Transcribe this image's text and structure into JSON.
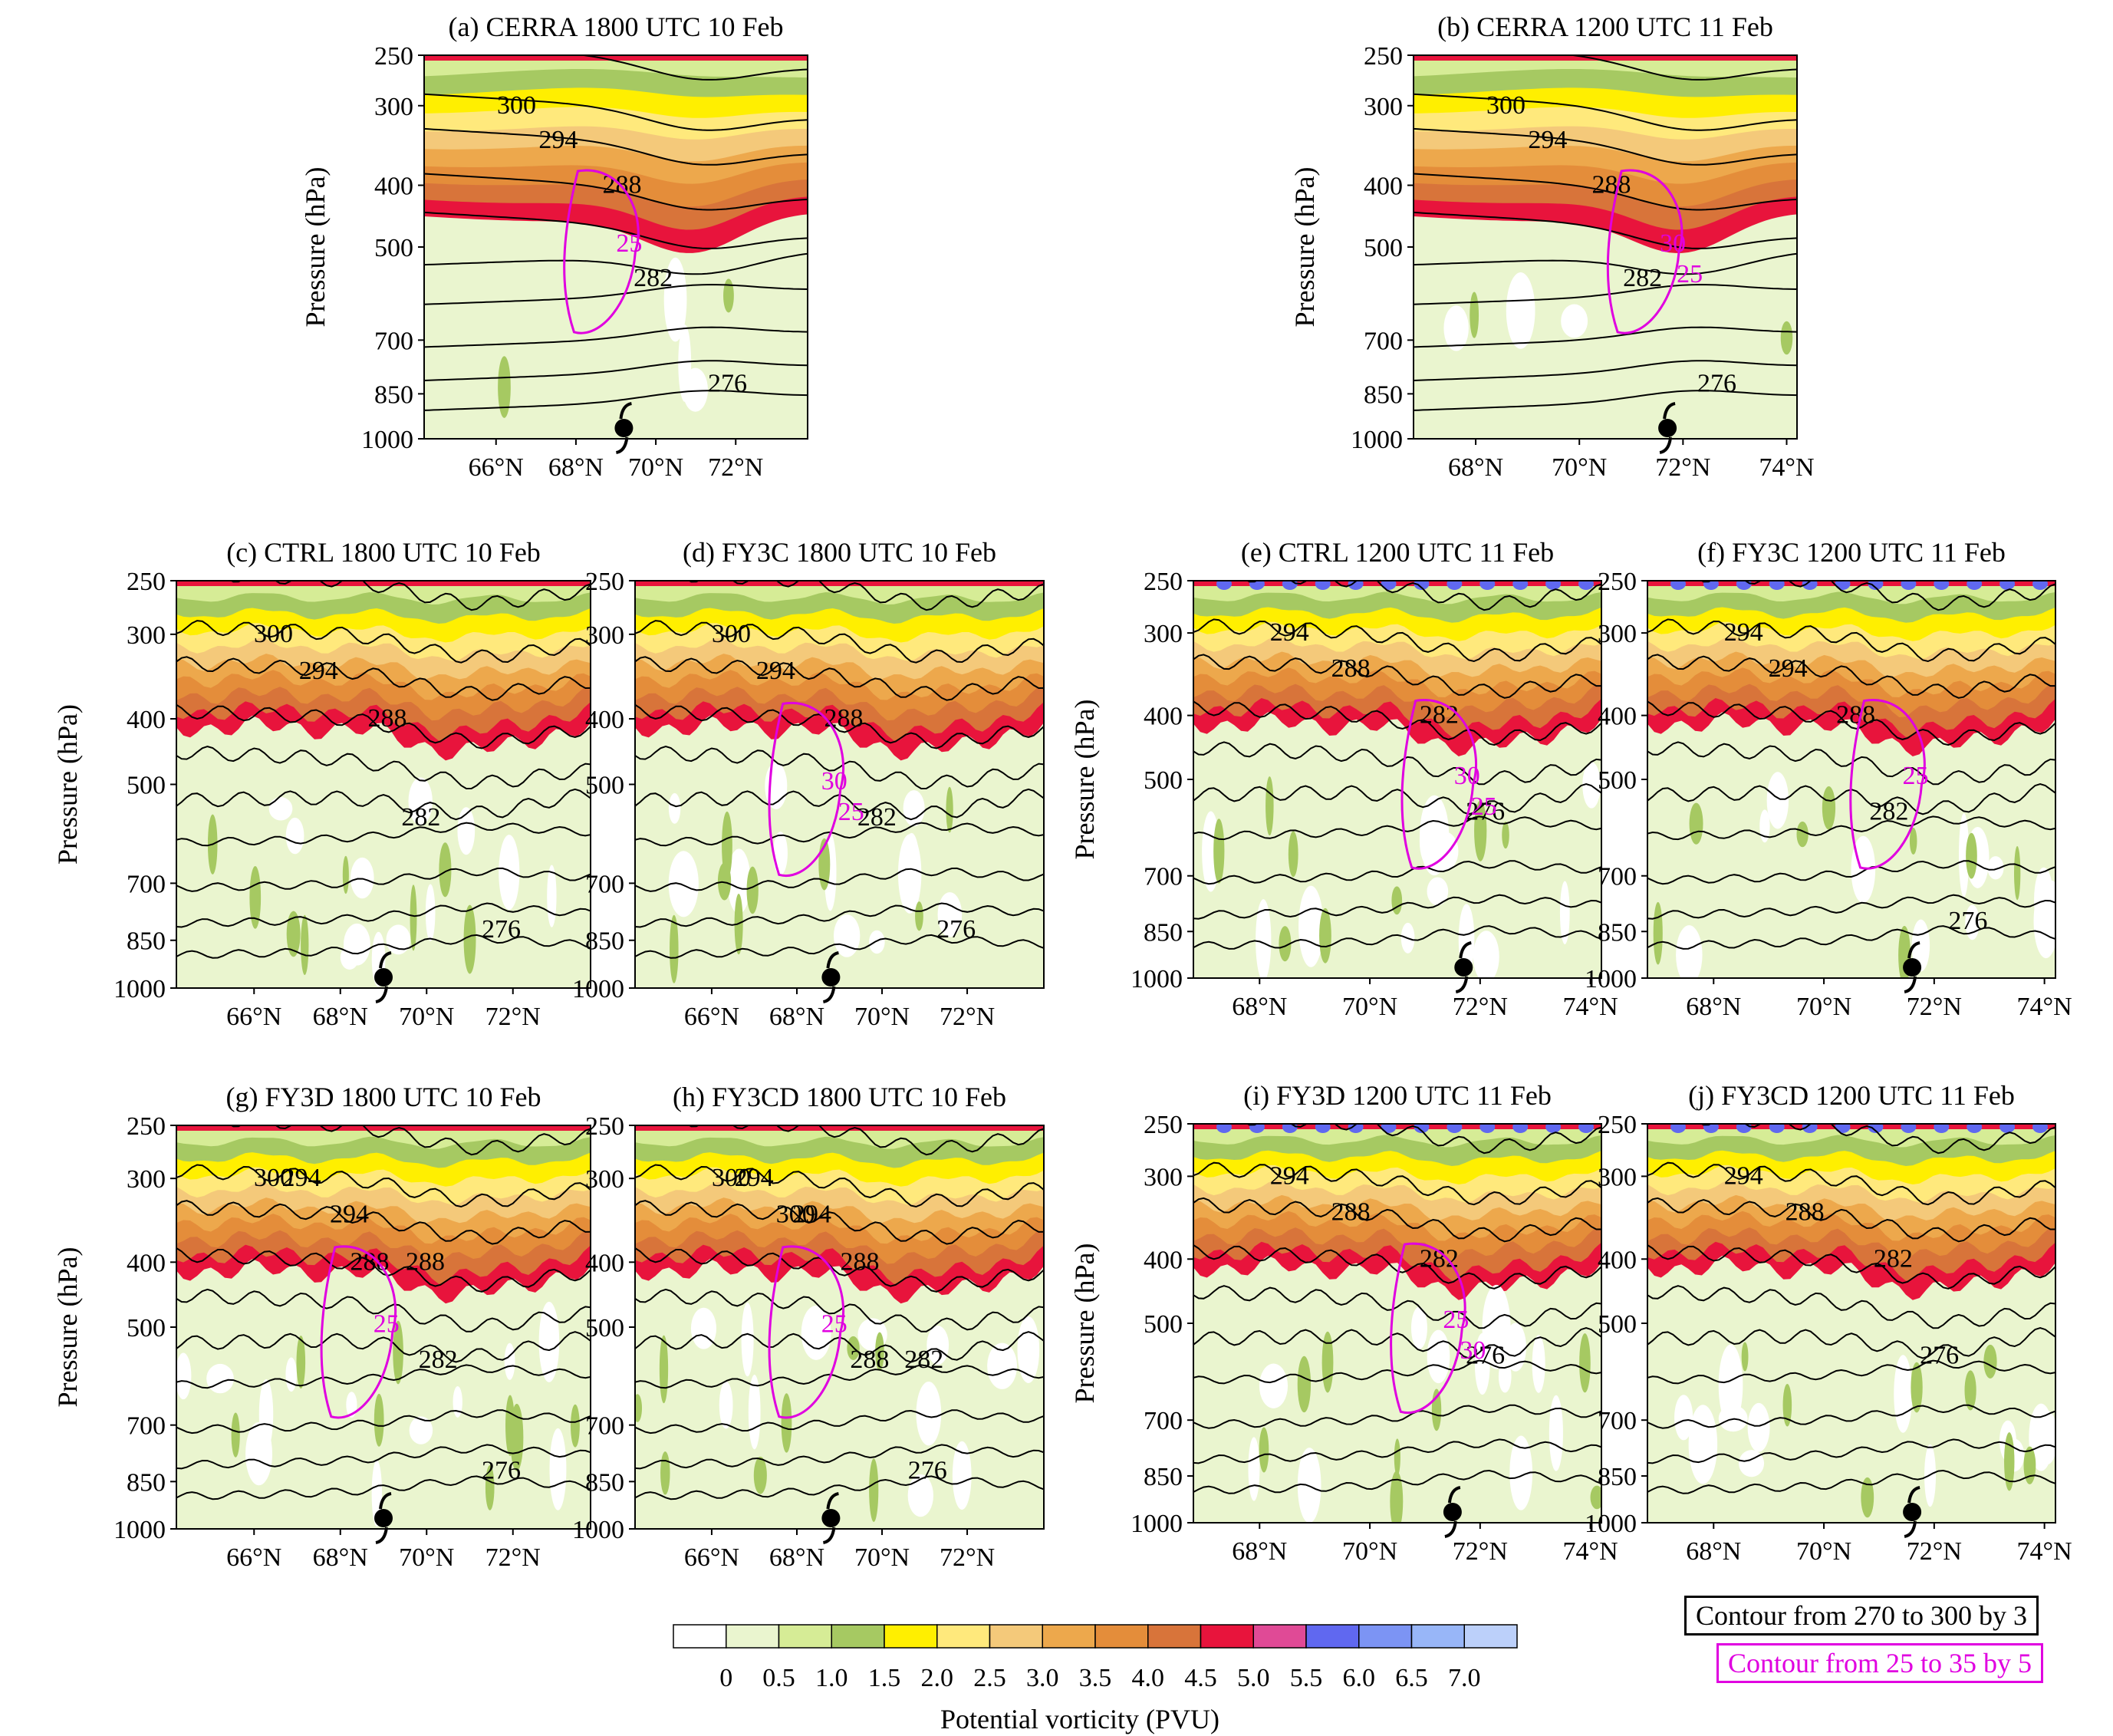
{
  "figure": {
    "y_axis_label": "Pressure (hPa)",
    "contour_legend_black": "Contour from 270 to 300 by 3",
    "contour_legend_magenta": "Contour from 25 to 35 by 5",
    "colorbar": {
      "label": "Potential vorticity (PVU)",
      "ticks": [
        "0",
        "0.5",
        "1.0",
        "1.5",
        "2.0",
        "2.5",
        "3.0",
        "3.5",
        "4.0",
        "4.5",
        "5.0",
        "5.5",
        "6.0",
        "6.5",
        "7.0"
      ],
      "colors": [
        "#ffffff",
        "#eaf5cf",
        "#d6ec96",
        "#a6c962",
        "#ffef00",
        "#ffe97c",
        "#f4c97a",
        "#eda84c",
        "#e48d3a",
        "#d8743a",
        "#e8143c",
        "#e04a96",
        "#6068f0",
        "#7c94f4",
        "#98b6f8",
        "#bcd0fa"
      ]
    },
    "colors": {
      "theta_contour": "#000000",
      "wind_contour": "#e000e0"
    }
  },
  "chart_data": [
    {
      "id": "a",
      "type": "heatmap",
      "title": "(a) CERRA 1800 UTC 10 Feb",
      "x_ticks": [
        "66°N",
        "68°N",
        "70°N",
        "72°N"
      ],
      "x_tick_values": [
        66,
        68,
        70,
        72
      ],
      "xlim": [
        64.2,
        73.8
      ],
      "y_ticks": [
        "250",
        "300",
        "400",
        "500",
        "700",
        "850",
        "1000"
      ],
      "y_tick_values": [
        250,
        300,
        400,
        500,
        700,
        850,
        1000
      ],
      "ylim": [
        250,
        1000
      ],
      "theta_labels": [
        "300",
        "294",
        "288",
        "282",
        "276"
      ],
      "wind_labels": [
        "25"
      ],
      "cyclone_lat": 69.2
    },
    {
      "id": "b",
      "type": "heatmap",
      "title": "(b) CERRA 1200 UTC 11 Feb",
      "x_ticks": [
        "68°N",
        "70°N",
        "72°N",
        "74°N"
      ],
      "x_tick_values": [
        68,
        70,
        72,
        74
      ],
      "xlim": [
        66.8,
        74.2
      ],
      "y_ticks": [
        "250",
        "300",
        "400",
        "500",
        "700",
        "850",
        "1000"
      ],
      "y_tick_values": [
        250,
        300,
        400,
        500,
        700,
        850,
        1000
      ],
      "ylim": [
        250,
        1000
      ],
      "theta_labels": [
        "300",
        "294",
        "288",
        "282",
        "276"
      ],
      "wind_labels": [
        "30",
        "25"
      ],
      "cyclone_lat": 71.7
    },
    {
      "id": "c",
      "type": "heatmap",
      "title": "(c) CTRL 1800 UTC 10 Feb",
      "x_ticks": [
        "66°N",
        "68°N",
        "70°N",
        "72°N"
      ],
      "x_tick_values": [
        66,
        68,
        70,
        72
      ],
      "xlim": [
        64.2,
        73.8
      ],
      "y_ticks": [
        "250",
        "300",
        "400",
        "500",
        "700",
        "850",
        "1000"
      ],
      "y_tick_values": [
        250,
        300,
        400,
        500,
        700,
        850,
        1000
      ],
      "ylim": [
        250,
        1000
      ],
      "theta_labels": [
        "300",
        "294",
        "288",
        "282",
        "276"
      ],
      "wind_labels": [],
      "cyclone_lat": 69.0
    },
    {
      "id": "d",
      "type": "heatmap",
      "title": "(d) FY3C 1800 UTC 10 Feb",
      "x_ticks": [
        "66°N",
        "68°N",
        "70°N",
        "72°N"
      ],
      "x_tick_values": [
        66,
        68,
        70,
        72
      ],
      "xlim": [
        64.2,
        73.8
      ],
      "y_ticks": [
        "250",
        "300",
        "400",
        "500",
        "700",
        "850",
        "1000"
      ],
      "y_tick_values": [
        250,
        300,
        400,
        500,
        700,
        850,
        1000
      ],
      "ylim": [
        250,
        1000
      ],
      "theta_labels": [
        "300",
        "294",
        "288",
        "282",
        "276"
      ],
      "wind_labels": [
        "30",
        "25"
      ],
      "cyclone_lat": 68.8
    },
    {
      "id": "e",
      "type": "heatmap",
      "title": "(e) CTRL 1200 UTC 11 Feb",
      "x_ticks": [
        "68°N",
        "70°N",
        "72°N",
        "74°N"
      ],
      "x_tick_values": [
        68,
        70,
        72,
        74
      ],
      "xlim": [
        66.8,
        74.2
      ],
      "y_ticks": [
        "250",
        "300",
        "400",
        "500",
        "700",
        "850",
        "1000"
      ],
      "y_tick_values": [
        250,
        300,
        400,
        500,
        700,
        850,
        1000
      ],
      "ylim": [
        250,
        1000
      ],
      "theta_labels": [
        "294",
        "288",
        "282",
        "276"
      ],
      "wind_labels": [
        "30",
        "25"
      ],
      "cyclone_lat": 71.7
    },
    {
      "id": "f",
      "type": "heatmap",
      "title": "(f) FY3C 1200 UTC 11 Feb",
      "x_ticks": [
        "68°N",
        "70°N",
        "72°N",
        "74°N"
      ],
      "x_tick_values": [
        68,
        70,
        72,
        74
      ],
      "xlim": [
        66.8,
        74.2
      ],
      "y_ticks": [
        "250",
        "300",
        "400",
        "500",
        "700",
        "850",
        "1000"
      ],
      "y_tick_values": [
        250,
        300,
        400,
        500,
        700,
        850,
        1000
      ],
      "ylim": [
        250,
        1000
      ],
      "theta_labels": [
        "294",
        "294",
        "288",
        "282",
        "276"
      ],
      "wind_labels": [
        "25"
      ],
      "cyclone_lat": 71.6
    },
    {
      "id": "g",
      "type": "heatmap",
      "title": "(g) FY3D 1800 UTC 10 Feb",
      "x_ticks": [
        "66°N",
        "68°N",
        "70°N",
        "72°N"
      ],
      "x_tick_values": [
        66,
        68,
        70,
        72
      ],
      "xlim": [
        64.2,
        73.8
      ],
      "y_ticks": [
        "250",
        "300",
        "400",
        "500",
        "700",
        "850",
        "1000"
      ],
      "y_tick_values": [
        250,
        300,
        400,
        500,
        700,
        850,
        1000
      ],
      "ylim": [
        250,
        1000
      ],
      "theta_labels": [
        "300",
        "294",
        "294",
        "288",
        "288",
        "282",
        "276"
      ],
      "wind_labels": [
        "25"
      ],
      "cyclone_lat": 69.0
    },
    {
      "id": "h",
      "type": "heatmap",
      "title": "(h) FY3CD 1800 UTC 10 Feb",
      "x_ticks": [
        "66°N",
        "68°N",
        "70°N",
        "72°N"
      ],
      "x_tick_values": [
        66,
        68,
        70,
        72
      ],
      "xlim": [
        64.2,
        73.8
      ],
      "y_ticks": [
        "250",
        "300",
        "400",
        "500",
        "700",
        "850",
        "1000"
      ],
      "y_tick_values": [
        250,
        300,
        400,
        500,
        700,
        850,
        1000
      ],
      "ylim": [
        250,
        1000
      ],
      "theta_labels": [
        "300",
        "294",
        "300",
        "294",
        "288",
        "288",
        "282",
        "276"
      ],
      "wind_labels": [
        "25"
      ],
      "cyclone_lat": 68.8
    },
    {
      "id": "i",
      "type": "heatmap",
      "title": "(i) FY3D 1200 UTC 11 Feb",
      "x_ticks": [
        "68°N",
        "70°N",
        "72°N",
        "74°N"
      ],
      "x_tick_values": [
        68,
        70,
        72,
        74
      ],
      "xlim": [
        66.8,
        74.2
      ],
      "y_ticks": [
        "250",
        "300",
        "400",
        "500",
        "700",
        "850",
        "1000"
      ],
      "y_tick_values": [
        250,
        300,
        400,
        500,
        700,
        850,
        1000
      ],
      "ylim": [
        250,
        1000
      ],
      "theta_labels": [
        "294",
        "288",
        "282",
        "276"
      ],
      "wind_labels": [
        "25",
        "30"
      ],
      "cyclone_lat": 71.5
    },
    {
      "id": "j",
      "type": "heatmap",
      "title": "(j) FY3CD 1200 UTC 11 Feb",
      "x_ticks": [
        "68°N",
        "70°N",
        "72°N",
        "74°N"
      ],
      "x_tick_values": [
        68,
        70,
        72,
        74
      ],
      "xlim": [
        66.8,
        74.2
      ],
      "y_ticks": [
        "250",
        "300",
        "400",
        "500",
        "700",
        "850",
        "1000"
      ],
      "y_tick_values": [
        250,
        300,
        400,
        500,
        700,
        850,
        1000
      ],
      "ylim": [
        250,
        1000
      ],
      "theta_labels": [
        "294",
        "288",
        "282",
        "276"
      ],
      "wind_labels": [],
      "cyclone_lat": 71.6
    }
  ]
}
